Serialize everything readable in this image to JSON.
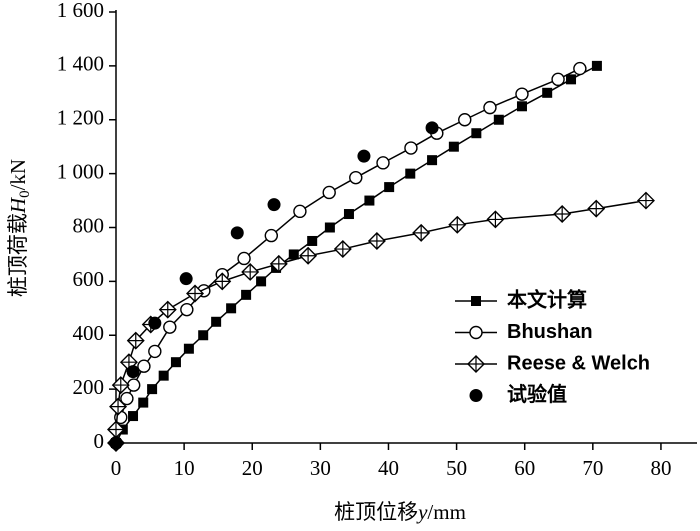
{
  "chart_data": {
    "type": "line",
    "xlabel": [
      "桩顶位移",
      "y",
      "/mm"
    ],
    "ylabel": [
      "桩顶荷载",
      "H",
      "0",
      "/kN"
    ],
    "xlim": [
      0,
      85
    ],
    "ylim": [
      0,
      1600
    ],
    "xticks": [
      0,
      10,
      20,
      30,
      40,
      50,
      60,
      70,
      80
    ],
    "yticks": [
      0,
      200,
      400,
      600,
      800,
      {
        "value": 1000,
        "label": "1 000"
      },
      {
        "value": 1200,
        "label": "1 200"
      },
      {
        "value": 1400,
        "label": "1 400"
      },
      {
        "value": 1600,
        "label": "1 600"
      }
    ],
    "legend": "right",
    "series": [
      {
        "name": "本文计算",
        "color": "#000000",
        "marker": "square",
        "line": true,
        "x": [
          0,
          1,
          2.5,
          4,
          5.3,
          7,
          8.8,
          10.7,
          12.8,
          14.7,
          16.9,
          19.1,
          21.3,
          23.5,
          26.1,
          28.8,
          31.4,
          34.2,
          37.2,
          40.1,
          43.2,
          46.4,
          49.6,
          52.9,
          56.2,
          59.6,
          63.3,
          66.8,
          70.6
        ],
        "values": [
          0,
          50,
          100,
          150,
          200,
          250,
          300,
          350,
          400,
          450,
          500,
          550,
          600,
          650,
          700,
          750,
          800,
          850,
          900,
          950,
          1000,
          1050,
          1100,
          1150,
          1200,
          1250,
          1300,
          1350,
          1400
        ]
      },
      {
        "name": "Bhushan",
        "color": "#000000",
        "marker": "circle",
        "line": true,
        "x": [
          0,
          0.7,
          1.6,
          2.6,
          4.1,
          5.7,
          7.9,
          10.4,
          12.9,
          15.6,
          18.8,
          22.8,
          27,
          31.3,
          35.2,
          39.2,
          43.3,
          47.1,
          51.2,
          54.9,
          59.6,
          64.9,
          68.1
        ],
        "values": [
          0,
          95,
          165,
          215,
          285,
          340,
          430,
          495,
          565,
          625,
          685,
          770,
          860,
          930,
          985,
          1040,
          1095,
          1150,
          1200,
          1245,
          1295,
          1350,
          1390
        ]
      },
      {
        "name": "Reese & Welch",
        "color": "#000000",
        "marker": "diamond",
        "line": true,
        "x": [
          0,
          0,
          0.3,
          0.7,
          1.9,
          2.9,
          5.1,
          7.6,
          11.6,
          15.6,
          19.7,
          23.9,
          28.2,
          33.3,
          38.3,
          44.8,
          50.1,
          55.7,
          65.5,
          70.5,
          77.8
        ],
        "values": [
          0,
          50,
          135,
          215,
          300,
          380,
          440,
          495,
          555,
          600,
          635,
          665,
          695,
          720,
          750,
          780,
          810,
          830,
          850,
          870,
          900
        ]
      },
      {
        "name": "试验值",
        "color": "#000000",
        "marker": "dot",
        "line": false,
        "x": [
          0,
          2.5,
          5.7,
          10.3,
          17.8,
          23.2,
          36.4,
          46.4
        ],
        "values": [
          0,
          265,
          445,
          610,
          780,
          885,
          1065,
          1170
        ]
      }
    ]
  }
}
